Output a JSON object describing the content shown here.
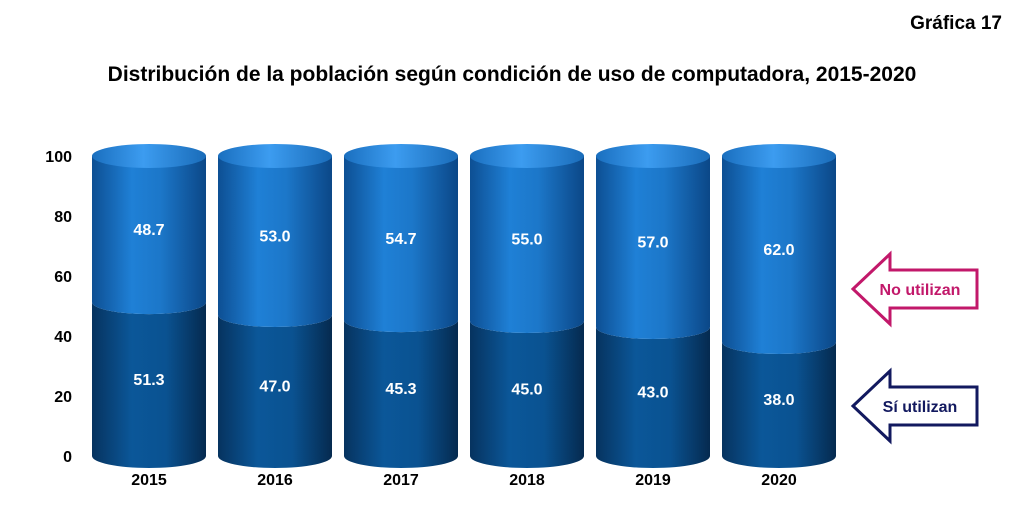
{
  "header": {
    "figure_number": "Gráfica 17",
    "title": "Distribución de la población según condición de uso de computadora, 2015-2020"
  },
  "chart_data": {
    "type": "bar",
    "stacked": true,
    "categories": [
      "2015",
      "2016",
      "2017",
      "2018",
      "2019",
      "2020"
    ],
    "series": [
      {
        "name": "Sí utilizan",
        "values": [
          51.3,
          47.0,
          45.3,
          45.0,
          43.0,
          38.0
        ],
        "labels": [
          "51.3",
          "47.0",
          "45.3",
          "45.0",
          "43.0",
          "38.0"
        ],
        "color": "#0a4f8c"
      },
      {
        "name": "No utilizan",
        "values": [
          48.7,
          53.0,
          54.7,
          55.0,
          57.0,
          62.0
        ],
        "labels": [
          "48.7",
          "53.0",
          "54.7",
          "55.0",
          "57.0",
          "62.0"
        ],
        "color": "#1f78c8"
      }
    ],
    "ylim": [
      0,
      100
    ],
    "yticks": [
      "0",
      "20",
      "40",
      "60",
      "80",
      "100"
    ],
    "xlabel": "",
    "ylabel": "",
    "grid": false,
    "legend": {
      "placement": "right",
      "items": [
        {
          "label": "No utilizan",
          "color": "#c2186a"
        },
        {
          "label": "Sí utilizan",
          "color": "#12195f"
        }
      ]
    }
  }
}
